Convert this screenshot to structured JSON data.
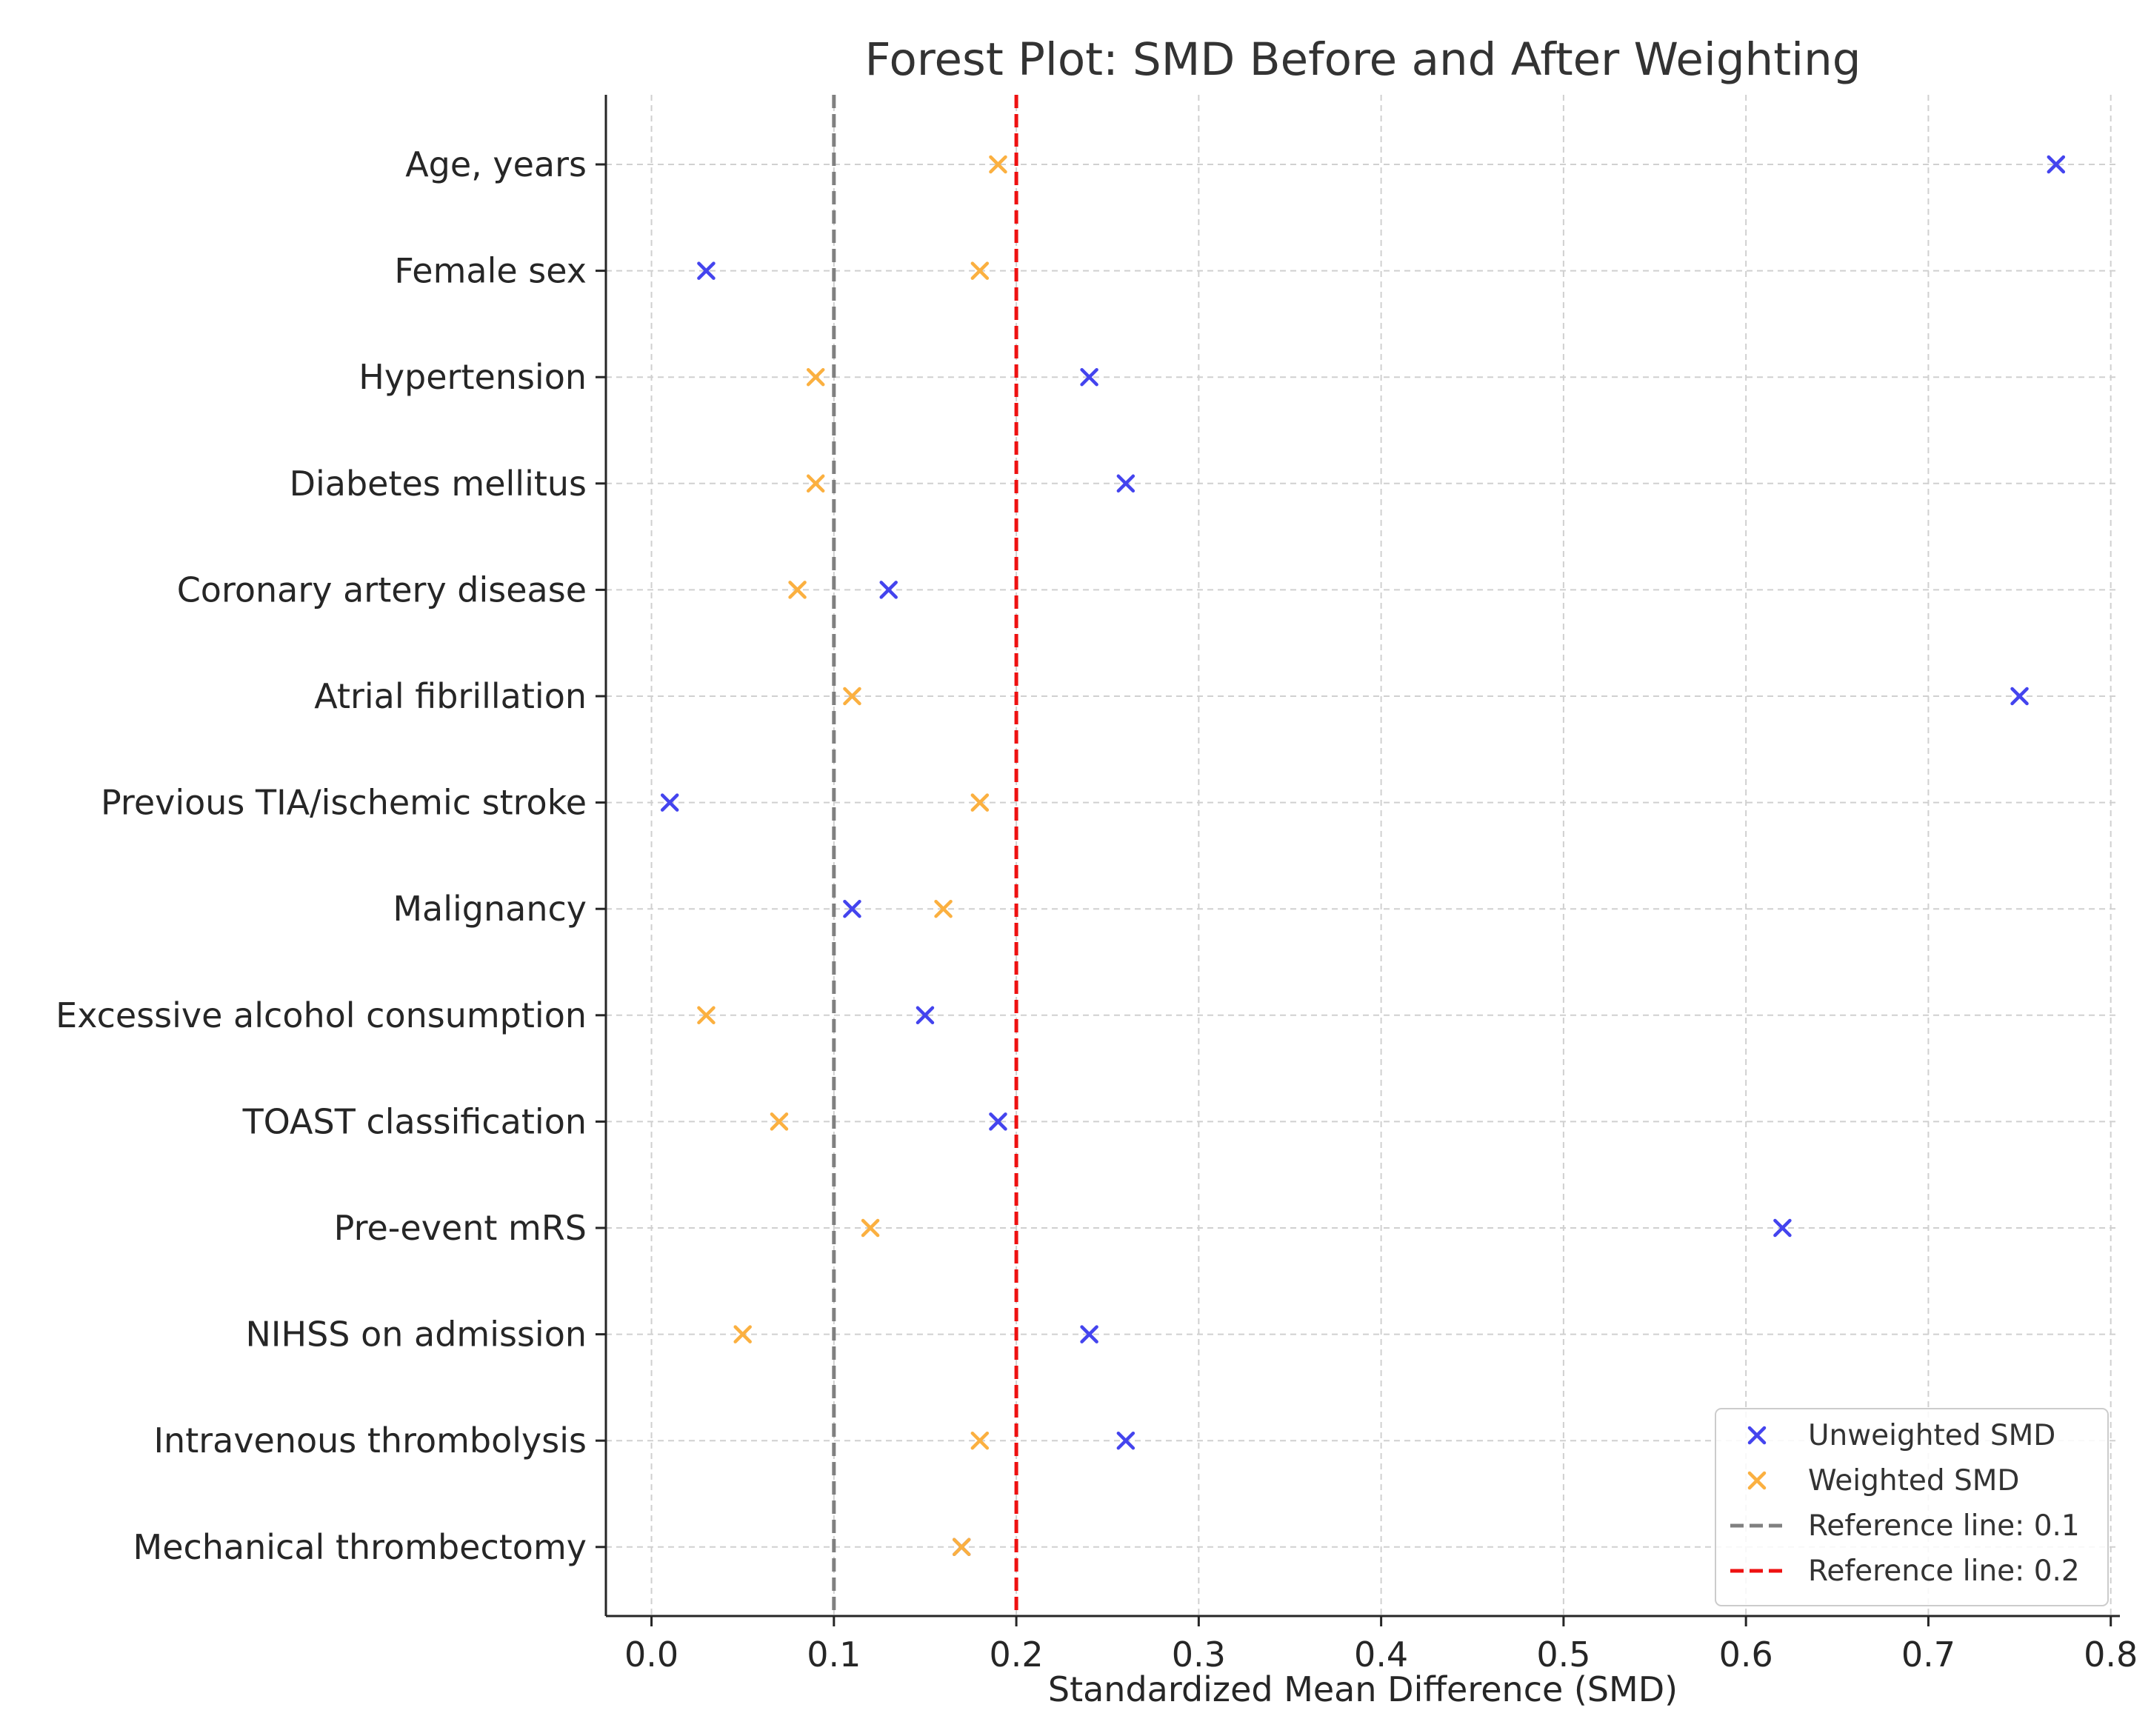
{
  "chart_data": {
    "type": "scatter",
    "title": "Forest Plot: SMD Before and After Weighting",
    "xlabel": "Standardized Mean Difference (SMD)",
    "ylabel": "",
    "xlim": [
      -0.025,
      0.805
    ],
    "xticks": [
      0.0,
      0.1,
      0.2,
      0.3,
      0.4,
      0.5,
      0.6,
      0.7,
      0.8
    ],
    "xtick_labels": [
      "0.0",
      "0.1",
      "0.2",
      "0.3",
      "0.4",
      "0.5",
      "0.6",
      "0.7",
      "0.8"
    ],
    "grid": true,
    "categories": [
      "Age, years",
      "Female sex",
      "Hypertension",
      "Diabetes mellitus",
      "Coronary artery disease",
      "Atrial fibrillation",
      "Previous TIA/ischemic stroke",
      "Malignancy",
      "Excessive alcohol consumption",
      "TOAST classification",
      "Pre-event mRS",
      "NIHSS on admission",
      "Intravenous thrombolysis",
      "Mechanical thrombectomy"
    ],
    "series": [
      {
        "name": "Unweighted SMD",
        "marker": "x",
        "color": "#4444ee",
        "values": [
          0.77,
          0.03,
          0.24,
          0.26,
          0.13,
          0.75,
          0.01,
          0.11,
          0.15,
          0.19,
          0.62,
          0.24,
          0.26,
          0.17
        ]
      },
      {
        "name": "Weighted SMD",
        "marker": "x",
        "color": "#fbb040",
        "values": [
          0.19,
          0.18,
          0.09,
          0.09,
          0.08,
          0.11,
          0.18,
          0.16,
          0.03,
          0.07,
          0.12,
          0.05,
          0.18,
          0.17
        ]
      }
    ],
    "reference_lines": [
      {
        "name": "Reference line: 0.1",
        "x": 0.1,
        "color": "#808080",
        "style": "dashed"
      },
      {
        "name": "Reference line: 0.2",
        "x": 0.2,
        "color": "#ee1111",
        "style": "dashed"
      }
    ],
    "legend": {
      "placement": "bottom-right",
      "entries": [
        "Unweighted SMD",
        "Weighted SMD",
        "Reference line: 0.1",
        "Reference line: 0.2"
      ]
    }
  }
}
